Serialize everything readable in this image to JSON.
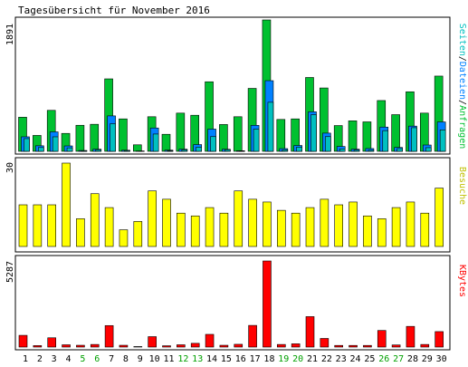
{
  "title": "Tagesübersicht für November 2016",
  "colors": {
    "border": "#000000",
    "seiten": "#00c030",
    "dateien": "#0080ff",
    "anfragen": "#00c0c0",
    "besuche": "#ffff00",
    "besuche_label": "#c0c000",
    "kbytes": "#ff0000",
    "weekend_day": "#00a000",
    "weekday": "#000000"
  },
  "panels": {
    "hits": {
      "ymax_label": "1891",
      "legend": [
        {
          "text": "Seiten",
          "color": "#00c0c0"
        },
        {
          "text": "/",
          "color": "#000000"
        },
        {
          "text": "Dateien",
          "color": "#0080ff"
        },
        {
          "text": "/",
          "color": "#000000"
        },
        {
          "text": "Anfragen",
          "color": "#00c030"
        }
      ]
    },
    "visits": {
      "ymax_label": "30",
      "legend": "Besuche"
    },
    "kbytes": {
      "ymax_label": "5287",
      "legend": "KBytes"
    }
  },
  "days": [
    "1",
    "2",
    "3",
    "4",
    "5",
    "6",
    "7",
    "8",
    "9",
    "10",
    "11",
    "12",
    "13",
    "14",
    "15",
    "16",
    "17",
    "18",
    "19",
    "20",
    "21",
    "22",
    "23",
    "24",
    "25",
    "26",
    "27",
    "28",
    "29",
    "30"
  ],
  "weekend": [
    false,
    false,
    false,
    false,
    true,
    true,
    false,
    false,
    false,
    false,
    false,
    true,
    true,
    false,
    false,
    false,
    false,
    false,
    true,
    true,
    false,
    false,
    false,
    false,
    false,
    true,
    true,
    false,
    false,
    false
  ],
  "chart_data": [
    {
      "type": "bar",
      "title": "Tagesübersicht für November 2016",
      "categories": [
        "1",
        "2",
        "3",
        "4",
        "5",
        "6",
        "7",
        "8",
        "9",
        "10",
        "11",
        "12",
        "13",
        "14",
        "15",
        "16",
        "17",
        "18",
        "19",
        "20",
        "21",
        "22",
        "23",
        "24",
        "25",
        "26",
        "27",
        "28",
        "29",
        "30"
      ],
      "ylim": [
        0,
        1891
      ],
      "series": [
        {
          "name": "Anfragen",
          "values": [
            491,
            229,
            590,
            258,
            375,
            389,
            1043,
            467,
            94,
            498,
            245,
            550,
            519,
            1001,
            386,
            498,
            906,
            1891,
            459,
            467,
            1063,
            912,
            371,
            439,
            424,
            731,
            528,
            857,
            550,
            1083
          ]
        },
        {
          "name": "Dateien",
          "values": [
            209,
            80,
            280,
            78,
            12,
            31,
            510,
            16,
            5,
            336,
            17,
            31,
            97,
            320,
            30,
            9,
            374,
            1017,
            39,
            84,
            569,
            262,
            70,
            31,
            40,
            349,
            56,
            363,
            91,
            423
          ]
        },
        {
          "name": "Seiten",
          "values": [
            183,
            55,
            209,
            50,
            10,
            23,
            397,
            12,
            4,
            249,
            10,
            22,
            60,
            212,
            24,
            6,
            320,
            706,
            22,
            61,
            527,
            212,
            35,
            18,
            16,
            298,
            39,
            340,
            53,
            309
          ]
        }
      ]
    },
    {
      "type": "bar",
      "categories": [
        "1",
        "2",
        "3",
        "4",
        "5",
        "6",
        "7",
        "8",
        "9",
        "10",
        "11",
        "12",
        "13",
        "14",
        "15",
        "16",
        "17",
        "18",
        "19",
        "20",
        "21",
        "22",
        "23",
        "24",
        "25",
        "26",
        "27",
        "28",
        "29",
        "30"
      ],
      "ylim": [
        0,
        30
      ],
      "series": [
        {
          "name": "Besuche",
          "values": [
            15,
            15,
            15,
            30,
            10,
            19,
            14,
            6,
            9,
            20,
            17,
            12,
            11,
            14,
            12,
            20,
            17,
            16,
            13,
            12,
            14,
            17,
            15,
            16,
            11,
            10,
            14,
            16,
            12,
            21
          ]
        }
      ]
    },
    {
      "type": "bar",
      "categories": [
        "1",
        "2",
        "3",
        "4",
        "5",
        "6",
        "7",
        "8",
        "9",
        "10",
        "11",
        "12",
        "13",
        "14",
        "15",
        "16",
        "17",
        "18",
        "19",
        "20",
        "21",
        "22",
        "23",
        "24",
        "25",
        "26",
        "27",
        "28",
        "29",
        "30"
      ],
      "ylim": [
        0,
        5287
      ],
      "series": [
        {
          "name": "KBytes",
          "values": [
            720,
            90,
            570,
            140,
            110,
            160,
            1320,
            110,
            30,
            640,
            80,
            140,
            230,
            780,
            110,
            170,
            1330,
            5287,
            160,
            200,
            1870,
            530,
            100,
            100,
            100,
            1020,
            130,
            1270,
            160,
            950
          ]
        }
      ]
    }
  ]
}
